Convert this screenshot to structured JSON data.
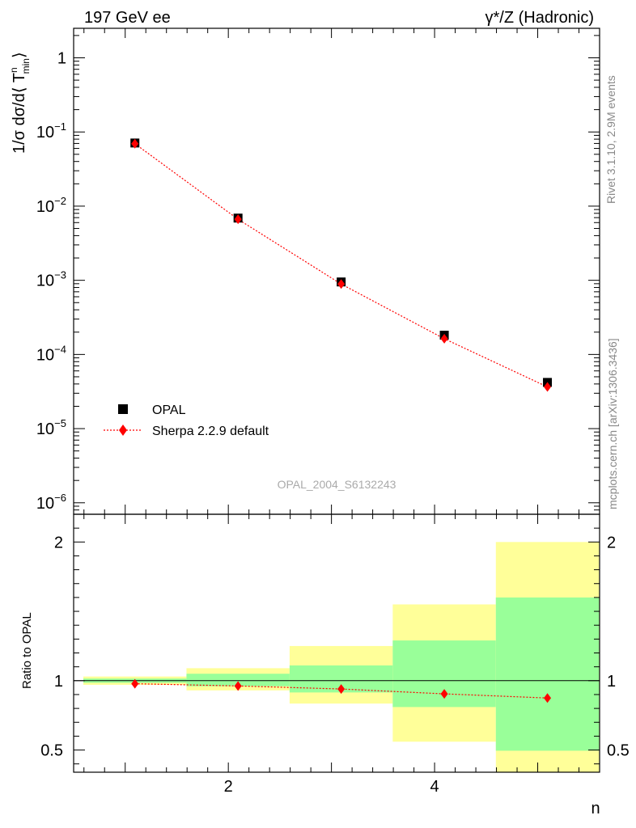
{
  "header": {
    "left": "197 GeV ee",
    "right": "γ*/Z (Hadronic)"
  },
  "side_labels": {
    "rivet": "Rivet 3.1.10,  2.9M events",
    "mcplots": "mcplots.cern.ch [arXiv:1306.3436]"
  },
  "watermark": "OPAL_2004_S6132243",
  "chart_data": [
    {
      "type": "scatter",
      "ylabel": "1/σ dσ/d⟨ T",
      "ylabel_sup": "n",
      "ylabel_sub": "min",
      "ylabel_end": "⟩",
      "yscale": "log",
      "ylim": [
        7e-07,
        2.5
      ],
      "xlim": [
        0.5,
        5.6
      ],
      "y_ticklabels": [
        "1",
        "10",
        "10",
        "10",
        "10",
        "10",
        "10"
      ],
      "y_tickexp": [
        "",
        "−1",
        "−2",
        "−3",
        "−4",
        "−5",
        "−6"
      ],
      "legend_position": "lower-left",
      "series": [
        {
          "name": "OPAL",
          "color": "#000000",
          "marker": "square",
          "x": [
            1,
            2,
            3,
            4,
            5
          ],
          "y": [
            0.071,
            0.0069,
            0.00095,
            0.000182,
            4.2e-05
          ]
        },
        {
          "name": "Sherpa 2.2.9 default",
          "color": "#ff0000",
          "marker": "diamond",
          "line": "dotted",
          "x": [
            1,
            2,
            3,
            4,
            5
          ],
          "y": [
            0.0695,
            0.00665,
            0.00089,
            0.000163,
            3.65e-05
          ]
        }
      ]
    },
    {
      "type": "scatter",
      "ylabel": "Ratio to OPAL",
      "xlabel": "n",
      "ylim": [
        0.34,
        2.2
      ],
      "xlim": [
        0.5,
        5.6
      ],
      "x_ticklabels": [
        "2",
        "4"
      ],
      "y_ticklabels": [
        "0.5",
        "1",
        "2"
      ],
      "bands": [
        {
          "xlo": 0.5,
          "xhi": 1.5,
          "green": [
            0.985,
            1.015
          ],
          "yellow": [
            0.97,
            1.03
          ]
        },
        {
          "xlo": 1.5,
          "xhi": 2.5,
          "green": [
            0.96,
            1.05
          ],
          "yellow": [
            0.93,
            1.09
          ]
        },
        {
          "xlo": 2.5,
          "xhi": 3.5,
          "green": [
            0.915,
            1.11
          ],
          "yellow": [
            0.835,
            1.25
          ]
        },
        {
          "xlo": 3.5,
          "xhi": 4.5,
          "green": [
            0.81,
            1.29
          ],
          "yellow": [
            0.56,
            1.55
          ]
        },
        {
          "xlo": 4.5,
          "xhi": 5.5,
          "green": [
            0.495,
            1.6
          ],
          "yellow": [
            0.3,
            2.0
          ]
        }
      ],
      "band_colors": {
        "green": "#99ff99",
        "yellow": "#ffff99"
      },
      "series": [
        {
          "name": "Sherpa 2.2.9 default",
          "color": "#ff0000",
          "x": [
            1,
            2,
            3,
            4,
            5
          ],
          "y": [
            0.978,
            0.962,
            0.94,
            0.905,
            0.875
          ]
        }
      ]
    }
  ]
}
